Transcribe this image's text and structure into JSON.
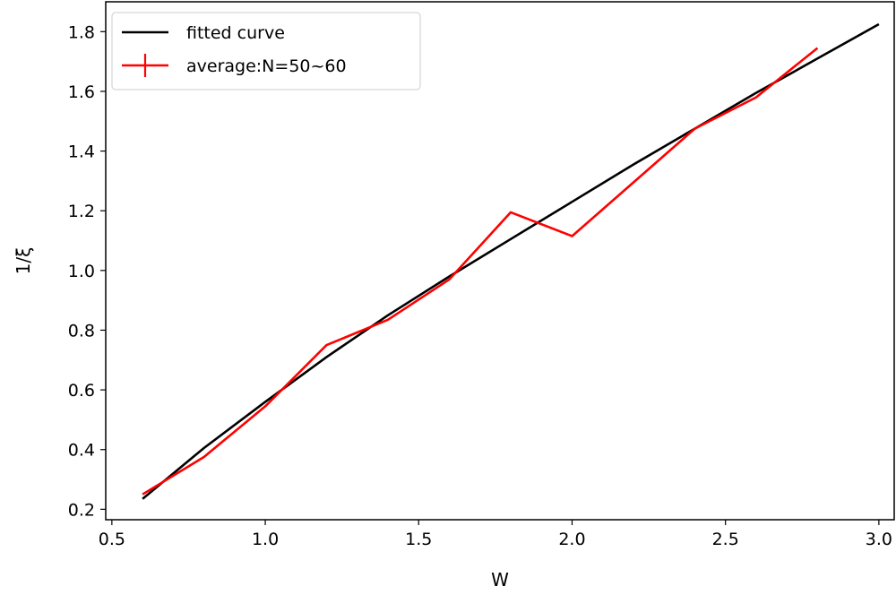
{
  "chart_data": {
    "type": "line",
    "title": "",
    "xlabel": "W",
    "ylabel": "1/ξ",
    "xlim": [
      0.48,
      3.05
    ],
    "ylim": [
      0.165,
      1.9
    ],
    "xticks": [
      0.5,
      1.0,
      1.5,
      2.0,
      2.5,
      3.0
    ],
    "xtick_labels": [
      "0.5",
      "1.0",
      "1.5",
      "2.0",
      "2.5",
      "3.0"
    ],
    "yticks": [
      0.2,
      0.4,
      0.6,
      0.8,
      1.0,
      1.2,
      1.4,
      1.6,
      1.8
    ],
    "ytick_labels": [
      "0.2",
      "0.4",
      "0.6",
      "0.8",
      "1.0",
      "1.2",
      "1.4",
      "1.6",
      "1.8"
    ],
    "grid": false,
    "legend_position": "upper-left",
    "series": [
      {
        "name": "fitted curve",
        "color": "#000000",
        "x": [
          0.6,
          0.8,
          1.0,
          1.2,
          1.4,
          1.6,
          1.8,
          2.0,
          2.2,
          2.4,
          2.6,
          2.8,
          3.0
        ],
        "y": [
          0.235,
          0.405,
          0.56,
          0.71,
          0.85,
          0.98,
          1.105,
          1.23,
          1.355,
          1.475,
          1.595,
          1.71,
          1.825
        ]
      },
      {
        "name": "average:N=50~60",
        "color": "#ff0000",
        "marker": "errorbar-cross",
        "x": [
          0.6,
          0.8,
          1.0,
          1.2,
          1.4,
          1.6,
          1.8,
          2.0,
          2.2,
          2.4,
          2.6,
          2.8
        ],
        "y": [
          0.25,
          0.375,
          0.545,
          0.75,
          0.835,
          0.97,
          1.195,
          1.115,
          1.295,
          1.475,
          1.58,
          1.745
        ]
      }
    ]
  }
}
